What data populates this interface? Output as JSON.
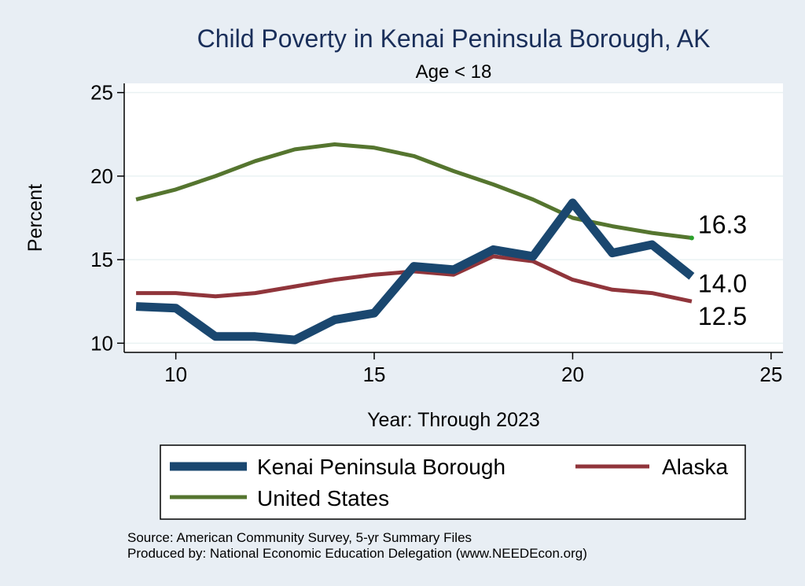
{
  "chart_data": {
    "type": "line",
    "title": "Child Poverty in Kenai Peninsula Borough, AK",
    "subtitle": "Age < 18",
    "xlabel": "Year: Through 2023",
    "ylabel": "Percent",
    "xlim": [
      8.7,
      25.3
    ],
    "ylim": [
      9.45,
      25.55
    ],
    "xticks": [
      10,
      15,
      20,
      25
    ],
    "yticks": [
      10,
      15,
      20,
      25
    ],
    "grid": true,
    "legend_position": "bottom",
    "x": [
      9,
      10,
      11,
      12,
      13,
      14,
      15,
      16,
      17,
      18,
      19,
      20,
      21,
      22,
      23
    ],
    "series": [
      {
        "name": "Kenai Peninsula Borough",
        "color": "#1a476f",
        "values": [
          12.2,
          12.1,
          10.4,
          10.4,
          10.2,
          11.4,
          11.8,
          14.6,
          14.4,
          15.6,
          15.2,
          18.4,
          15.4,
          15.9,
          14.0
        ],
        "end_label": "14.0"
      },
      {
        "name": "Alaska",
        "color": "#90353b",
        "values": [
          13.0,
          13.0,
          12.8,
          13.0,
          13.4,
          13.8,
          14.1,
          14.3,
          14.1,
          15.2,
          14.9,
          13.8,
          13.2,
          13.0,
          12.5
        ],
        "end_label": "12.5"
      },
      {
        "name": "United States",
        "color": "#55752f",
        "values": [
          18.6,
          19.2,
          20.0,
          20.9,
          21.6,
          21.9,
          21.7,
          21.2,
          20.3,
          19.5,
          18.6,
          17.5,
          17.0,
          16.6,
          16.3
        ],
        "end_label": "16.3"
      }
    ]
  },
  "notes": {
    "source": "Source: American Community Survey, 5-yr Summary Files",
    "produced": "Produced by: National Economic Education Delegation (www.NEEDEcon.org)"
  }
}
